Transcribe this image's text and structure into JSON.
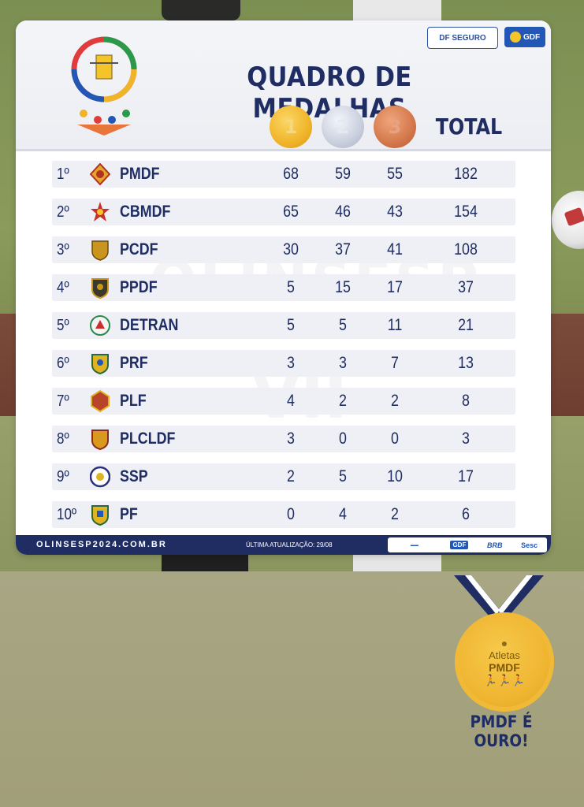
{
  "header": {
    "title": "QUADRO DE MEDALHAS",
    "sponsor_df": "DF SEGURO",
    "sponsor_gdf": "GDF",
    "medal_labels": [
      "1",
      "2",
      "3"
    ],
    "total_label": "TOTAL"
  },
  "rows": [
    {
      "pos": "1º",
      "team": "PMDF",
      "gold": "68",
      "silver": "59",
      "bronze": "55",
      "total": "182"
    },
    {
      "pos": "2º",
      "team": "CBMDF",
      "gold": "65",
      "silver": "46",
      "bronze": "43",
      "total": "154"
    },
    {
      "pos": "3º",
      "team": "PCDF",
      "gold": "30",
      "silver": "37",
      "bronze": "41",
      "total": "108"
    },
    {
      "pos": "4º",
      "team": "PPDF",
      "gold": "5",
      "silver": "15",
      "bronze": "17",
      "total": "37"
    },
    {
      "pos": "5º",
      "team": "DETRAN",
      "gold": "5",
      "silver": "5",
      "bronze": "11",
      "total": "21"
    },
    {
      "pos": "6º",
      "team": "PRF",
      "gold": "3",
      "silver": "3",
      "bronze": "7",
      "total": "13"
    },
    {
      "pos": "7º",
      "team": "PLF",
      "gold": "4",
      "silver": "2",
      "bronze": "2",
      "total": "8"
    },
    {
      "pos": "8º",
      "team": "PLCLDF",
      "gold": "3",
      "silver": "0",
      "bronze": "0",
      "total": "3"
    },
    {
      "pos": "9º",
      "team": "SSP",
      "gold": "2",
      "silver": "5",
      "bronze": "10",
      "total": "17"
    },
    {
      "pos": "10º",
      "team": "PF",
      "gold": "0",
      "silver": "4",
      "bronze": "2",
      "total": "6"
    }
  ],
  "watermark": {
    "line1": "OLINSESP",
    "line2": "VII"
  },
  "footer": {
    "site": "OLINSESP2024.COM.BR",
    "update": "ÚLTIMA ATUALIZAÇÃO: 29/08",
    "sponsors": [
      "GDF",
      "BRB",
      "Sesc"
    ]
  },
  "badge": {
    "caption1": "Atletas",
    "caption2": "PMDF",
    "slogan": "PMDF É OURO!"
  },
  "colors": {
    "navy": "#1f2d63",
    "gold": "#f0b429",
    "silver": "#c9cfdd",
    "bronze": "#d4784c",
    "row_bg": "#eef0f5"
  }
}
